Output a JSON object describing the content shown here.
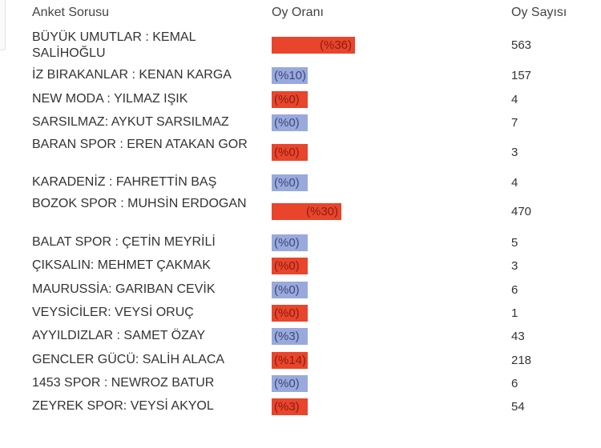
{
  "header": {
    "question_col": "Anket Sorusu",
    "rate_col": "Oy Oranı",
    "count_col": "Oy Sayısı"
  },
  "colors": {
    "red_bar": "#e8452c",
    "blue_bar": "#99a9dd"
  },
  "rows": [
    {
      "question": "BÜYÜK UMUTLAR : KEMAL SALİHOĞLU",
      "rate": "(%36)",
      "fill": 0.36,
      "count": "563",
      "color": "red"
    },
    {
      "question": "İZ BIRAKANLAR : KENAN KARGA",
      "rate": "(%10)",
      "fill": 0.1,
      "count": "157",
      "color": "blue"
    },
    {
      "question": "NEW MODA : YILMAZ IŞIK",
      "rate": "(%0)",
      "fill": 0.0,
      "count": "4",
      "color": "red"
    },
    {
      "question": "SARSILMAZ: AYKUT SARSILMAZ",
      "rate": "(%0)",
      "fill": 0.0,
      "count": "7",
      "color": "blue"
    },
    {
      "question": "BARAN SPOR : EREN ATAKAN GOR",
      "rate": "(%0)",
      "fill": 0.0,
      "count": "3",
      "color": "red"
    },
    {
      "question": "KARADENİZ : FAHRETTİN BAŞ",
      "rate": "(%0)",
      "fill": 0.0,
      "count": "4",
      "color": "blue"
    },
    {
      "question": "BOZOK SPOR : MUHSİN ERDOGAN",
      "rate": "(%30)",
      "fill": 0.3,
      "count": "470",
      "color": "red"
    },
    {
      "question": "BALAT SPOR : ÇETİN MEYRİLİ",
      "rate": "(%0)",
      "fill": 0.0,
      "count": "5",
      "color": "blue"
    },
    {
      "question": "ÇIKSALIN: MEHMET ÇAKMAK",
      "rate": "(%0)",
      "fill": 0.0,
      "count": "3",
      "color": "red"
    },
    {
      "question": "MAURUSSİA: GARIBAN CEVİK",
      "rate": "(%0)",
      "fill": 0.0,
      "count": "6",
      "color": "blue"
    },
    {
      "question": "VEYSİCİLER: VEYSİ ORUÇ",
      "rate": "(%0)",
      "fill": 0.0,
      "count": "1",
      "color": "red"
    },
    {
      "question": "AYYILDIZLAR : SAMET ÖZAY",
      "rate": "(%3)",
      "fill": 0.03,
      "count": "43",
      "color": "blue"
    },
    {
      "question": "GENCLER GÜCÜ: SALİH ALACA",
      "rate": "(%14)",
      "fill": 0.14,
      "count": "218",
      "color": "red"
    },
    {
      "question": "1453 SPOR : NEWROZ BATUR",
      "rate": "(%0)",
      "fill": 0.0,
      "count": "6",
      "color": "blue"
    },
    {
      "question": "ZEYREK SPOR: VEYSİ AKYOL",
      "rate": "(%3)",
      "fill": 0.03,
      "count": "54",
      "color": "red"
    }
  ]
}
